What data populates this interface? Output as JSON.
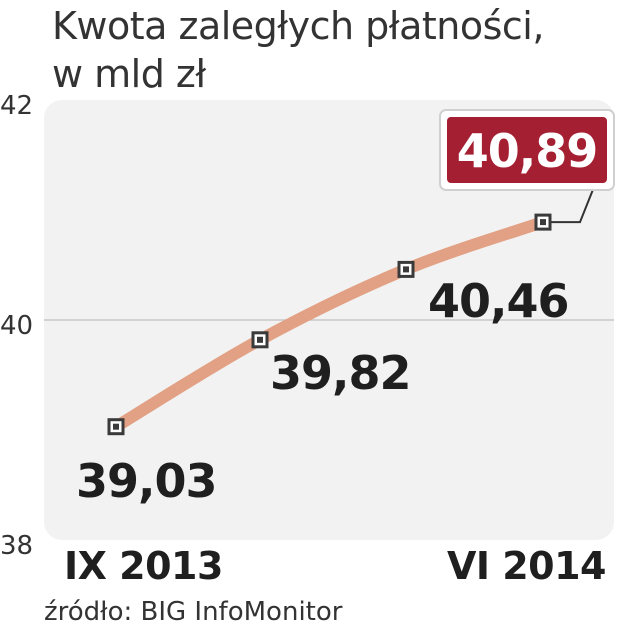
{
  "title_lines": [
    "Kwota zaległych płatności,",
    "w mld zł"
  ],
  "source": "źródło: BIG InfoMonitor",
  "colors": {
    "plot_bg": "#f2f2f2",
    "line": "#e2a184",
    "highlight_box": "#a51f33",
    "highlight_text": "#ffffff",
    "marker_fill": "#3a3a3a",
    "text": "#1f1f1f"
  },
  "chart_data": {
    "type": "line",
    "title": "Kwota zaległych płatności, w mld zł",
    "xlabel": "",
    "ylabel": "",
    "ylim": [
      38,
      42
    ],
    "yticks": [
      38,
      40,
      42
    ],
    "ytick_labels": [
      "38",
      "40",
      "42"
    ],
    "x_tick_labels": [
      "IX 2013",
      "VI 2014"
    ],
    "grid": "horizontal line at 40",
    "points": [
      {
        "value": 39.03,
        "label": "39,03"
      },
      {
        "value": 39.82,
        "label": "39,82"
      },
      {
        "value": 40.46,
        "label": "40,46"
      },
      {
        "value": 40.89,
        "label": "40,89",
        "highlight": true
      }
    ],
    "series": [
      {
        "values": [
          39.03,
          39.82,
          40.46,
          40.89
        ]
      }
    ]
  }
}
